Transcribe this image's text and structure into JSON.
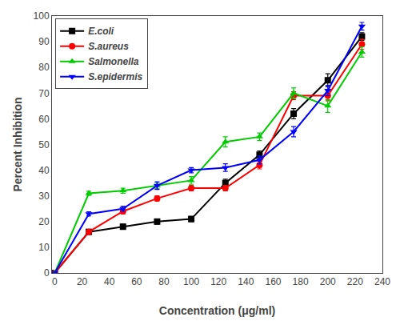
{
  "chart_data": {
    "type": "line",
    "xlabel": "Concentration (μg/ml)",
    "ylabel": "Percent Inhibition",
    "x": [
      0,
      25,
      50,
      75,
      100,
      125,
      150,
      175,
      200,
      225
    ],
    "series": [
      {
        "name": "E.coli",
        "color": "#000000",
        "marker": "square",
        "values": [
          0,
          16,
          18,
          20,
          21,
          35,
          46,
          62,
          75,
          92
        ],
        "errors": [
          0,
          0.5,
          1.0,
          1.0,
          1.0,
          1.5,
          1.5,
          2.0,
          2.5,
          1.5
        ]
      },
      {
        "name": "S.aureus",
        "color": "#ff0000",
        "marker": "circle",
        "values": [
          0,
          16,
          24,
          29,
          33,
          33,
          42,
          69,
          69,
          89
        ],
        "errors": [
          0,
          0.5,
          1.0,
          1.0,
          1.0,
          1.0,
          1.5,
          1.5,
          2.0,
          2.0
        ]
      },
      {
        "name": "Salmonella",
        "color": "#00cc00",
        "marker": "triangle-up",
        "values": [
          0,
          31,
          32,
          34,
          36,
          51,
          53,
          70,
          65,
          86
        ],
        "errors": [
          0,
          0.8,
          1.0,
          1.2,
          1.5,
          2.0,
          1.5,
          2.0,
          2.5,
          2.0
        ]
      },
      {
        "name": "S.epidermis",
        "color": "#0000ff",
        "marker": "triangle-down",
        "values": [
          0,
          23,
          25,
          34,
          40,
          41,
          44,
          55,
          71,
          96
        ],
        "errors": [
          0,
          0.8,
          1.0,
          1.5,
          1.0,
          1.5,
          1.5,
          2.0,
          2.0,
          1.5
        ]
      }
    ],
    "xlim": [
      -2,
      240
    ],
    "ylim": [
      0,
      100
    ],
    "xticks": [
      0,
      20,
      40,
      60,
      80,
      100,
      120,
      140,
      160,
      180,
      200,
      220,
      240
    ],
    "yticks": [
      0,
      10,
      20,
      30,
      40,
      50,
      60,
      70,
      80,
      90,
      100
    ],
    "grid": false,
    "legend": "upper left"
  }
}
